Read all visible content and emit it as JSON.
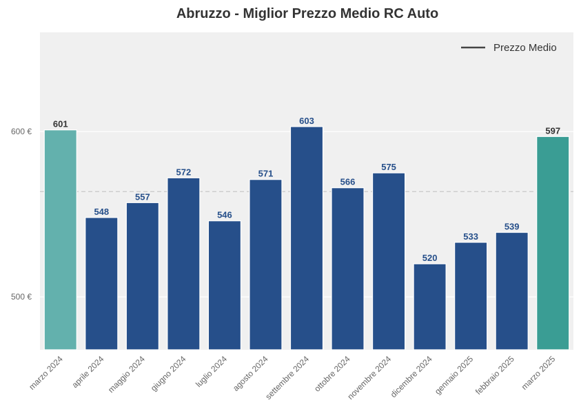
{
  "chart_data": {
    "type": "bar",
    "title": "Abruzzo - Miglior Prezzo Medio RC Auto",
    "xlabel": "",
    "ylabel": "",
    "categories": [
      "marzo 2024",
      "aprile 2024",
      "maggio 2024",
      "giugno 2024",
      "luglio 2024",
      "agosto 2024",
      "settembre 2024",
      "ottobre 2024",
      "novembre 2024",
      "dicembre 2024",
      "gennaio 2025",
      "febbraio 2025",
      "marzo 2025"
    ],
    "values": [
      601,
      548,
      557,
      572,
      546,
      571,
      603,
      566,
      575,
      520,
      533,
      539,
      597
    ],
    "data_labels": [
      "601",
      "548",
      "557",
      "572",
      "546",
      "571",
      "603",
      "566",
      "575",
      "520",
      "533",
      "539",
      "597"
    ],
    "ylim": [
      468,
      660
    ],
    "y_ticks": [
      500,
      600
    ],
    "y_tick_labels": [
      "500 €",
      "600 €"
    ],
    "average_line": 563.7,
    "legend": {
      "entries": [
        "Prezzo Medio"
      ],
      "position": "top-right"
    },
    "grid": true,
    "colors": {
      "default_bar": "#264f8a",
      "first_bar": "#63b1ad",
      "last_bar": "#3a9d94",
      "default_label": "#264f8a",
      "highlight_label": "#333333",
      "plot_background": "#f0f0f0",
      "average_line": "#c8c8c8",
      "legend_line": "#444444"
    }
  }
}
